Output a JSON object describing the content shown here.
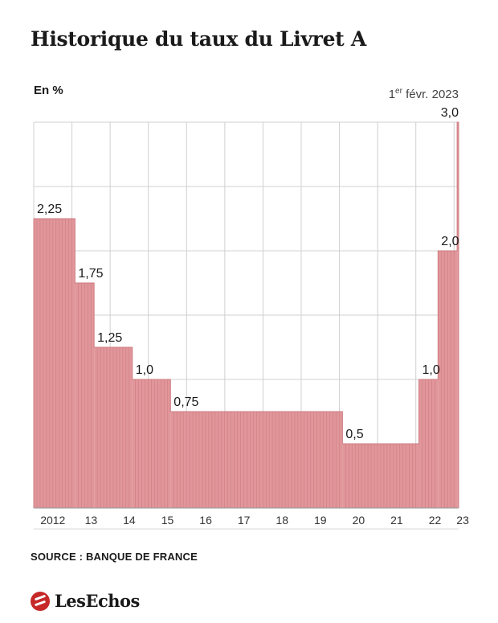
{
  "header": {
    "title": "Historique du taux du Livret A",
    "unit_label": "En %",
    "annotation_sup": "er",
    "annotation_rest": " févr. 2023",
    "annotation_lead": "1"
  },
  "footer": {
    "source": "SOURCE : BANQUE DE FRANCE",
    "brand": "LesEchos"
  },
  "colors": {
    "bar": "#e0969a",
    "bar_line": "#cf7d82",
    "grid": "#d0d0d0"
  },
  "chart_data": {
    "type": "area",
    "title": "Historique du taux du Livret A",
    "ylabel": "En %",
    "ylim": [
      0,
      3.0
    ],
    "grid": true,
    "x_start": 2012,
    "x_end": 2023.12,
    "tick_labels": [
      "2012",
      "13",
      "14",
      "15",
      "16",
      "17",
      "18",
      "19",
      "20",
      "21",
      "22",
      "23"
    ],
    "tick_positions": [
      2012,
      2013,
      2014,
      2015,
      2016,
      2017,
      2018,
      2019,
      2020,
      2021,
      2022,
      2023
    ],
    "steps": [
      {
        "start": 2012.0,
        "end": 2013.08,
        "value": 2.25,
        "label": "2,25"
      },
      {
        "start": 2013.08,
        "end": 2013.58,
        "value": 1.75,
        "label": "1,75"
      },
      {
        "start": 2013.58,
        "end": 2014.58,
        "value": 1.25,
        "label": "1,25"
      },
      {
        "start": 2014.58,
        "end": 2015.58,
        "value": 1.0,
        "label": "1,0"
      },
      {
        "start": 2015.58,
        "end": 2020.08,
        "value": 0.75,
        "label": "0,75"
      },
      {
        "start": 2020.08,
        "end": 2022.08,
        "value": 0.5,
        "label": "0,5"
      },
      {
        "start": 2022.08,
        "end": 2022.58,
        "value": 1.0,
        "label": "1,0"
      },
      {
        "start": 2022.58,
        "end": 2023.08,
        "value": 2.0,
        "label": "2,0"
      },
      {
        "start": 2023.08,
        "end": 2023.12,
        "value": 3.0,
        "label": "3,0"
      }
    ]
  }
}
